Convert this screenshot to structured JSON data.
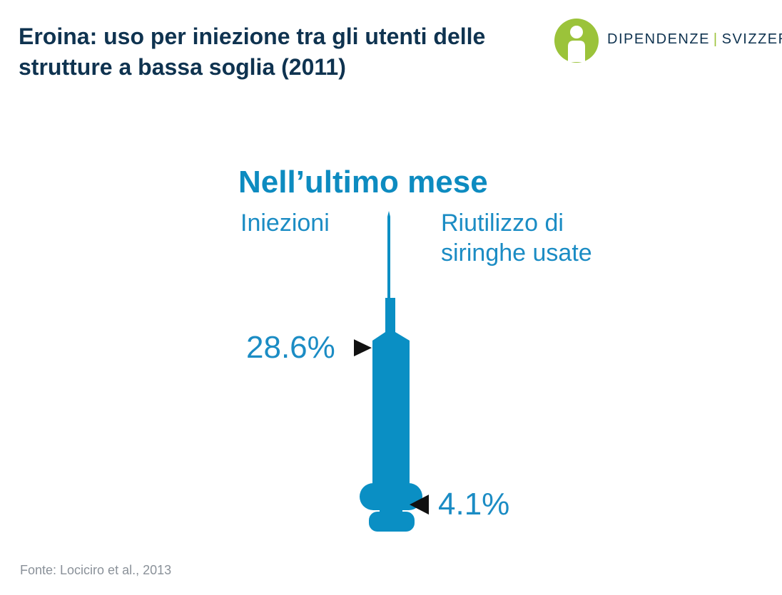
{
  "title": "Eroina: uso per iniezione tra gli utenti delle strutture a bassa soglia (2011)",
  "logo": {
    "part1": "DIPENDENZE",
    "separator": "|",
    "part2": "SVIZZERA",
    "colors": {
      "green": "#9bc33a",
      "navy": "#0f3350"
    }
  },
  "subtitle": "Nell’ultimo mese",
  "labels": {
    "left": "Iniezioni",
    "right": "Riutilizzo di siringhe usate"
  },
  "source": "Fonte: Lociciro et al., 2013",
  "colors": {
    "accent": "#1b8cc4",
    "syringe": "#0a8fc4",
    "title": "#0f3350",
    "marker": "#111111"
  },
  "chart_data": {
    "type": "bar",
    "categories": [
      "Iniezioni",
      "Riutilizzo di siringhe usate"
    ],
    "values": [
      28.6,
      4.1
    ],
    "value_labels": [
      "28.6%",
      "4.1%"
    ],
    "unit": "%",
    "ylim": [
      0,
      50
    ],
    "title": "Nell’ultimo mese"
  }
}
